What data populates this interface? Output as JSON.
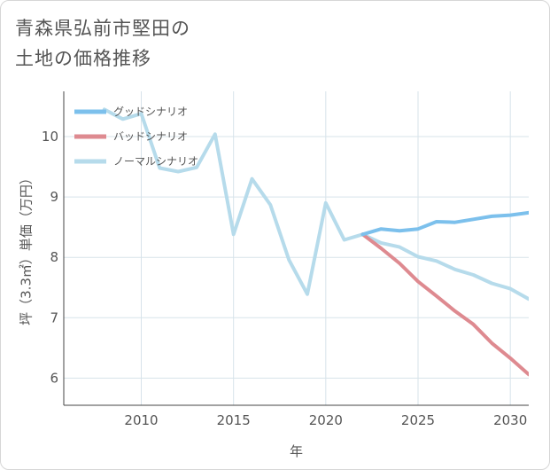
{
  "title_lines": [
    "青森県弘前市堅田の",
    "土地の価格推移"
  ],
  "colors": {
    "good": "#7cc0ec",
    "bad": "#de8a90",
    "normal": "#b6dbeb",
    "grid": "#d7e3ea",
    "axis": "#444444"
  },
  "chart_data": {
    "type": "line",
    "title": "青森県弘前市堅田の土地の価格推移",
    "xlabel": "年",
    "ylabel": "坪（3.3㎡）単価（万円）",
    "xlim": [
      2005.8,
      2031
    ],
    "ylim": [
      5.55,
      10.75
    ],
    "xticks": [
      2010,
      2015,
      2020,
      2025,
      2030
    ],
    "yticks": [
      6,
      7,
      8,
      9,
      10
    ],
    "grid": true,
    "legend_position": "top-left",
    "series": [
      {
        "name": "グッドシナリオ",
        "color": "#7cc0ec",
        "x": [
          2022,
          2023,
          2024,
          2025,
          2026,
          2027,
          2028,
          2029,
          2030,
          2031
        ],
        "y": [
          8.38,
          8.47,
          8.44,
          8.47,
          8.59,
          8.58,
          8.63,
          8.68,
          8.7,
          8.74
        ]
      },
      {
        "name": "バッドシナリオ",
        "color": "#de8a90",
        "x": [
          2022,
          2023,
          2024,
          2025,
          2026,
          2027,
          2028,
          2029,
          2030,
          2031
        ],
        "y": [
          8.38,
          8.15,
          7.9,
          7.6,
          7.36,
          7.11,
          6.89,
          6.58,
          6.33,
          6.06
        ]
      },
      {
        "name": "ノーマルシナリオ",
        "color": "#b6dbeb",
        "x": [
          2008,
          2009,
          2010,
          2011,
          2012,
          2013,
          2014,
          2015,
          2016,
          2017,
          2018,
          2019,
          2020,
          2021,
          2022,
          2023,
          2024,
          2025,
          2026,
          2027,
          2028,
          2029,
          2030,
          2031
        ],
        "y": [
          10.45,
          10.29,
          10.38,
          9.48,
          9.42,
          9.49,
          10.04,
          8.38,
          9.3,
          8.87,
          7.96,
          7.39,
          8.9,
          8.29,
          8.38,
          8.24,
          8.17,
          8.01,
          7.94,
          7.8,
          7.71,
          7.57,
          7.48,
          7.31
        ]
      }
    ]
  }
}
